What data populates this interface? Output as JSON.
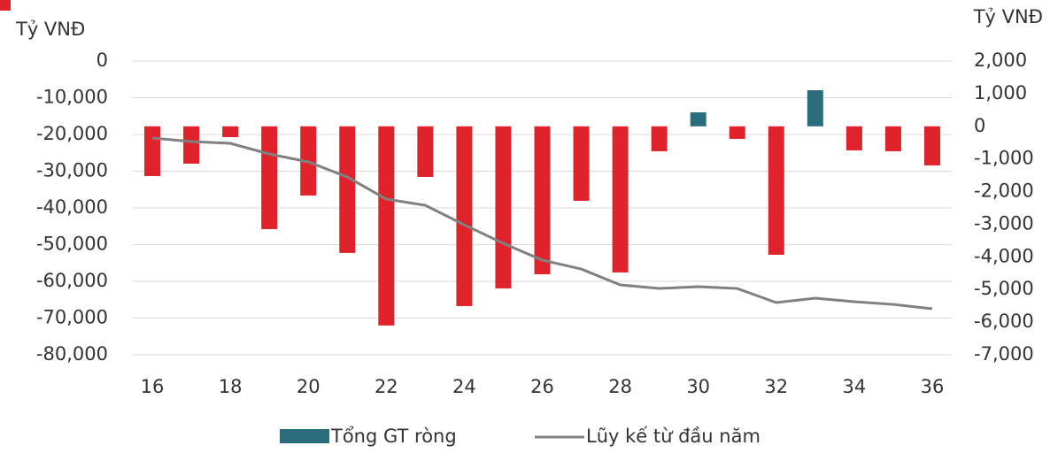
{
  "chart_data": {
    "type": "bar",
    "y_label": "Tỷ VNĐ",
    "y2_label": "Tỷ VNĐ",
    "categories": [
      "16",
      null,
      "18",
      null,
      "20",
      null,
      "22",
      null,
      "24",
      null,
      "26",
      null,
      "28",
      null,
      "30",
      null,
      "32",
      null,
      "34",
      null,
      "36"
    ],
    "series": [
      {
        "name": "Tổng GT ròng",
        "type": "bar",
        "axis": "y2",
        "color": "#e0232a",
        "positive_color": "#2a6b7c",
        "values": [
          -1523,
          -1144,
          -331,
          -3150,
          -2120,
          -3880,
          -6103,
          -1550,
          -5507,
          -4965,
          -4532,
          -2282,
          -4477,
          -764,
          428,
          -385,
          -3935,
          1106,
          -737,
          -764,
          -1198
        ]
      },
      {
        "name": "Lũy kế từ đầu năm",
        "type": "line",
        "axis": "y",
        "color": "#808080",
        "values": [
          -20970,
          -21930,
          -22410,
          -25300,
          -27470,
          -31570,
          -37600,
          -39280,
          -44590,
          -49650,
          -54220,
          -56640,
          -60970,
          -61940,
          -61450,
          -61940,
          -65790,
          -64590,
          -65550,
          -66280,
          -67480
        ]
      }
    ],
    "ylim": [
      -80000,
      0
    ],
    "yticks": [
      0,
      {
        "value": -10000,
        "label": "-10,000"
      },
      {
        "value": -20000,
        "label": "-20,000"
      },
      {
        "value": -30000,
        "label": "-30,000"
      },
      {
        "value": -40000,
        "label": "-40,000"
      },
      {
        "value": -50000,
        "label": "-50,000"
      },
      {
        "value": -60000,
        "label": "-60,000"
      },
      {
        "value": -70000,
        "label": "-70,000"
      },
      {
        "value": -80000,
        "label": "-80,000"
      }
    ],
    "y2lim": [
      -7000,
      2000
    ],
    "y2ticks": [
      {
        "value": 2000,
        "label": "2,000"
      },
      {
        "value": 1000,
        "label": "1,000"
      },
      0,
      {
        "value": -1000,
        "label": "-1,000"
      },
      {
        "value": -2000,
        "label": "-2,000"
      },
      {
        "value": -3000,
        "label": "-3,000"
      },
      {
        "value": -4000,
        "label": "-4,000"
      },
      {
        "value": -5000,
        "label": "-5,000"
      },
      {
        "value": -6000,
        "label": "-6,000"
      },
      {
        "value": -7000,
        "label": "-7,000"
      }
    ],
    "grid": true,
    "legend": "bottom"
  }
}
